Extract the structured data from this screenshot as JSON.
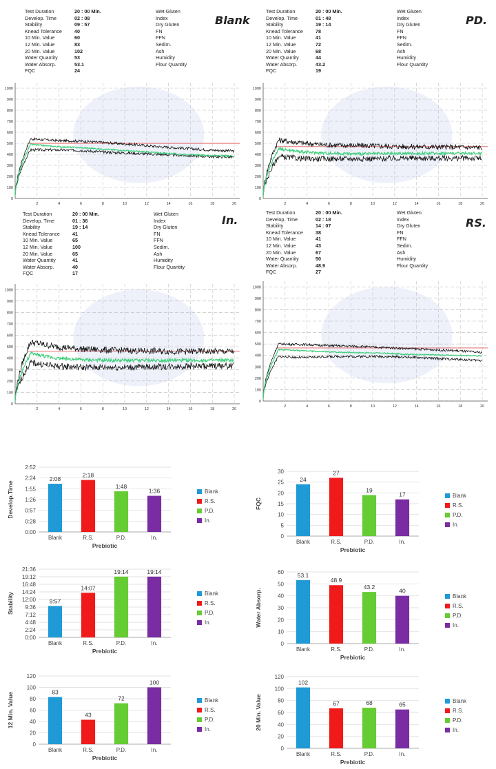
{
  "farinograms": [
    {
      "id": "blank",
      "title": "Blank",
      "rows": [
        {
          "label": "Test Duration",
          "value": "20 : 00 Min.",
          "rlabel": "Wet Gluten"
        },
        {
          "label": "Develop. Time",
          "value": "02 : 08",
          "rlabel": "Index"
        },
        {
          "label": "Stability",
          "value": "09 : 57",
          "rlabel": "Dry Gluten"
        },
        {
          "label": "Knead Tolerance",
          "value": "40",
          "rlabel": "FN"
        },
        {
          "label": "10 Min. Value",
          "value": "60",
          "rlabel": "FFN"
        },
        {
          "label": "12 Min. Value",
          "value": "83",
          "rlabel": "Sedim."
        },
        {
          "label": "20 Min. Value",
          "value": "102",
          "rlabel": "Ash"
        },
        {
          "label": "Water Quantity",
          "value": "53",
          "rlabel": "Humidity"
        },
        {
          "label": "Water Absorp.",
          "value": "53.1",
          "rlabel": "Flour Quantity"
        },
        {
          "label": "FQC",
          "value": "24",
          "rlabel": ""
        }
      ],
      "yticks": [
        "0",
        "100",
        "200",
        "300",
        "400",
        "500",
        "600",
        "700",
        "800",
        "900",
        "1000"
      ],
      "xticks": [
        "2",
        "4",
        "6",
        "8",
        "10",
        "12",
        "14",
        "16",
        "18",
        "20"
      ],
      "curve_profile": {
        "upper": [
          540,
          525,
          520,
          505,
          490,
          470,
          455,
          440,
          430
        ],
        "mid": [
          490,
          470,
          460,
          445,
          430,
          415,
          400,
          390,
          385
        ],
        "lower": [
          440,
          440,
          435,
          420,
          410,
          400,
          390,
          380,
          375
        ],
        "noise": 12,
        "refline": 500
      }
    },
    {
      "id": "pd",
      "title": "PD.",
      "rows": [
        {
          "label": "Test Duration",
          "value": "20 : 00 Min.",
          "rlabel": "Wet Gluten"
        },
        {
          "label": "Develop. Time",
          "value": "01 : 48",
          "rlabel": "Index"
        },
        {
          "label": "Stability",
          "value": "19 : 14",
          "rlabel": "Dry Gluten"
        },
        {
          "label": "Knead Tolerance",
          "value": "78",
          "rlabel": "FN"
        },
        {
          "label": "10 Min. Value",
          "value": "41",
          "rlabel": "FFN"
        },
        {
          "label": "12 Min. Value",
          "value": "72",
          "rlabel": "Sedim."
        },
        {
          "label": "20 Min. Value",
          "value": "68",
          "rlabel": "Ash"
        },
        {
          "label": "Water Quantity",
          "value": "44",
          "rlabel": "Humidity"
        },
        {
          "label": "Water Absorp.",
          "value": "43.2",
          "rlabel": "Flour Quantity"
        },
        {
          "label": "FQC",
          "value": "19",
          "rlabel": ""
        }
      ],
      "yticks": [
        "0",
        "100",
        "200",
        "300",
        "400",
        "500",
        "600",
        "700",
        "800",
        "900",
        "1000"
      ],
      "xticks": [
        "2",
        "4",
        "6",
        "8",
        "10",
        "12",
        "14",
        "16",
        "18",
        "20"
      ],
      "curve_profile": {
        "upper": [
          530,
          500,
          485,
          480,
          475,
          470,
          468,
          465,
          462
        ],
        "mid": [
          450,
          420,
          410,
          405,
          405,
          408,
          410,
          410,
          410
        ],
        "lower": [
          380,
          360,
          360,
          360,
          360,
          365,
          365,
          365,
          365
        ],
        "noise": 25,
        "refline": 470
      }
    },
    {
      "id": "in",
      "title": "In.",
      "rows": [
        {
          "label": "Test Duration",
          "value": "20 : 00 Min.",
          "rlabel": "Wet Gluten"
        },
        {
          "label": "Develop. Time",
          "value": "01 : 36",
          "rlabel": "Index"
        },
        {
          "label": "Stability",
          "value": "19 : 14",
          "rlabel": "Dry Gluten"
        },
        {
          "label": "Knead Tolerance",
          "value": "41",
          "rlabel": "FN"
        },
        {
          "label": "10 Min. Value",
          "value": "65",
          "rlabel": "FFN"
        },
        {
          "label": "12 Min. Value",
          "value": "100",
          "rlabel": "Sedim."
        },
        {
          "label": "20 Min. Value",
          "value": "65",
          "rlabel": "Ash"
        },
        {
          "label": "Water Quantity",
          "value": "41",
          "rlabel": "Humidity"
        },
        {
          "label": "Water Absorp.",
          "value": "40",
          "rlabel": "Flour Quantity"
        },
        {
          "label": "FQC",
          "value": "17",
          "rlabel": ""
        }
      ],
      "yticks": [
        "0",
        "100",
        "200",
        "300",
        "400",
        "500",
        "600",
        "700",
        "800",
        "900",
        "1000"
      ],
      "xticks": [
        "2",
        "4",
        "6",
        "8",
        "10",
        "12",
        "14",
        "16",
        "18",
        "20"
      ],
      "curve_profile": {
        "upper": [
          540,
          500,
          480,
          470,
          465,
          460,
          458,
          458,
          458
        ],
        "mid": [
          440,
          400,
          385,
          380,
          380,
          380,
          380,
          380,
          380
        ],
        "lower": [
          360,
          330,
          320,
          320,
          320,
          325,
          330,
          330,
          335
        ],
        "noise": 28,
        "refline": 460
      }
    },
    {
      "id": "rs",
      "title": "RS.",
      "rows": [
        {
          "label": "Test Duration",
          "value": "20 : 00 Min.",
          "rlabel": "Wet Gluten"
        },
        {
          "label": "Develop. Time",
          "value": "02 : 18",
          "rlabel": "Index"
        },
        {
          "label": "Stability",
          "value": "14 : 07",
          "rlabel": "Dry Gluten"
        },
        {
          "label": "Knead Tolerance",
          "value": "38",
          "rlabel": "FN"
        },
        {
          "label": "10 Min. Value",
          "value": "41",
          "rlabel": "FFN"
        },
        {
          "label": "12 Min. Value",
          "value": "43",
          "rlabel": "Sedim."
        },
        {
          "label": "20 Min. Value",
          "value": "67",
          "rlabel": "Ash"
        },
        {
          "label": "Water Quantity",
          "value": "50",
          "rlabel": "Humidity"
        },
        {
          "label": "Water Absorp.",
          "value": "48.9",
          "rlabel": "Flour Quantity"
        },
        {
          "label": "FQC",
          "value": "27",
          "rlabel": ""
        }
      ],
      "yticks": [
        "0",
        "100",
        "200",
        "300",
        "400",
        "500",
        "600",
        "700",
        "800",
        "900",
        "1000"
      ],
      "xticks": [
        "2",
        "4",
        "6",
        "8",
        "10",
        "12",
        "14",
        "16",
        "18",
        "20"
      ],
      "curve_profile": {
        "upper": [
          500,
          495,
          485,
          480,
          470,
          460,
          450,
          440,
          425
        ],
        "mid": [
          450,
          440,
          430,
          425,
          420,
          410,
          405,
          400,
          395
        ],
        "lower": [
          390,
          380,
          390,
          390,
          390,
          385,
          375,
          365,
          355
        ],
        "noise": 10,
        "refline": 465
      }
    }
  ],
  "chart_data": [
    {
      "id": "develop-time",
      "type": "bar",
      "categories": [
        "Blank",
        "R.S.",
        "P.D.",
        "In."
      ],
      "values": [
        128,
        138,
        108,
        96
      ],
      "value_labels": [
        "2:08",
        "2:18",
        "1:48",
        "1:36"
      ],
      "yticks": [
        "0:00",
        "0:28",
        "0:57",
        "1:26",
        "1:55",
        "2:24",
        "2:52"
      ],
      "ylim": [
        0,
        172
      ],
      "ylabel": "Develop.Time",
      "xlabel": "Prebiotic",
      "legend": [
        "Blank",
        "R.S.",
        "P.D.",
        "In."
      ],
      "colors": [
        "#1f9ad6",
        "#f01a1a",
        "#66cc33",
        "#7a2ca3"
      ]
    },
    {
      "id": "fqc",
      "type": "bar",
      "categories": [
        "Blank",
        "R.S.",
        "P.D.",
        "In."
      ],
      "values": [
        24,
        27,
        19,
        17
      ],
      "value_labels": [
        "24",
        "27",
        "19",
        "17"
      ],
      "yticks": [
        "0",
        "5",
        "10",
        "15",
        "20",
        "25",
        "30"
      ],
      "ylim": [
        0,
        30
      ],
      "ylabel": "FQC",
      "xlabel": "Prebiotic",
      "legend": [
        "Blank",
        "R.S.",
        "P.D.",
        "In."
      ],
      "colors": [
        "#1f9ad6",
        "#f01a1a",
        "#66cc33",
        "#7a2ca3"
      ]
    },
    {
      "id": "stability",
      "type": "bar",
      "categories": [
        "Blank",
        "R.S.",
        "P.D.",
        "In."
      ],
      "values": [
        597,
        847,
        1154,
        1154
      ],
      "value_labels": [
        "9:57",
        "14:07",
        "19:14",
        "19:14"
      ],
      "yticks": [
        "0:00",
        "2:24",
        "4:48",
        "7:12",
        "9:36",
        "12:00",
        "14:24",
        "16:48",
        "19:12",
        "21:36"
      ],
      "ylim": [
        0,
        1296
      ],
      "ylabel": "Stability",
      "xlabel": "Prebiotic",
      "legend": [
        "Blank",
        "R.S.",
        "P.D.",
        "In."
      ],
      "colors": [
        "#1f9ad6",
        "#f01a1a",
        "#66cc33",
        "#7a2ca3"
      ]
    },
    {
      "id": "water-absorp",
      "type": "bar",
      "categories": [
        "Blank",
        "R.S.",
        "P.D.",
        "In."
      ],
      "values": [
        53.1,
        48.9,
        43.2,
        40
      ],
      "value_labels": [
        "53.1",
        "48.9",
        "43.2",
        "40"
      ],
      "yticks": [
        "0",
        "10",
        "20",
        "30",
        "40",
        "50",
        "60"
      ],
      "ylim": [
        0,
        60
      ],
      "ylabel": "Water Absorp.",
      "xlabel": "Prebiotic",
      "legend": [
        "Blank",
        "R.S.",
        "P.D.",
        "In."
      ],
      "colors": [
        "#1f9ad6",
        "#f01a1a",
        "#66cc33",
        "#7a2ca3"
      ]
    },
    {
      "id": "12-min-value",
      "type": "bar",
      "categories": [
        "Blank",
        "R.S.",
        "P.D.",
        "In."
      ],
      "values": [
        83,
        43,
        72,
        100
      ],
      "value_labels": [
        "83",
        "43",
        "72",
        "100"
      ],
      "yticks": [
        "0",
        "20",
        "40",
        "60",
        "80",
        "100",
        "120"
      ],
      "ylim": [
        0,
        120
      ],
      "ylabel": "12 Min. Value",
      "xlabel": "Prebiotic",
      "legend": [
        "Blank",
        "R.S.",
        "P.D.",
        "In."
      ],
      "colors": [
        "#1f9ad6",
        "#f01a1a",
        "#66cc33",
        "#7a2ca3"
      ]
    },
    {
      "id": "20-min-value",
      "type": "bar",
      "categories": [
        "Blank",
        "R.S.",
        "P.D.",
        "In."
      ],
      "values": [
        102,
        67,
        68,
        65
      ],
      "value_labels": [
        "102",
        "67",
        "68",
        "65"
      ],
      "yticks": [
        "0",
        "20",
        "40",
        "60",
        "80",
        "100",
        "120"
      ],
      "ylim": [
        0,
        120
      ],
      "ylabel": "20 Min. Value",
      "xlabel": "Prebiotic",
      "legend": [
        "Blank",
        "R.S.",
        "P.D.",
        "In."
      ],
      "colors": [
        "#1f9ad6",
        "#f01a1a",
        "#66cc33",
        "#7a2ca3"
      ]
    }
  ]
}
